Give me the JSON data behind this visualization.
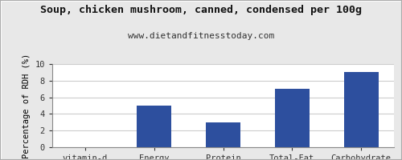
{
  "title": "Soup, chicken mushroom, canned, condensed per 100g",
  "subtitle": "www.dietandfitnesstoday.com",
  "categories": [
    "vitamin-d",
    "Energy",
    "Protein",
    "Total-Fat",
    "Carbohydrate"
  ],
  "values": [
    0,
    5,
    3,
    7,
    9
  ],
  "bar_color": "#2d4f9e",
  "ylabel": "Percentage of RDH (%)",
  "ylim": [
    0,
    10
  ],
  "yticks": [
    0,
    2,
    4,
    6,
    8,
    10
  ],
  "background_color": "#e8e8e8",
  "plot_bg_color": "#ffffff",
  "title_fontsize": 9.5,
  "subtitle_fontsize": 8,
  "ylabel_fontsize": 7.5,
  "tick_fontsize": 7.5
}
